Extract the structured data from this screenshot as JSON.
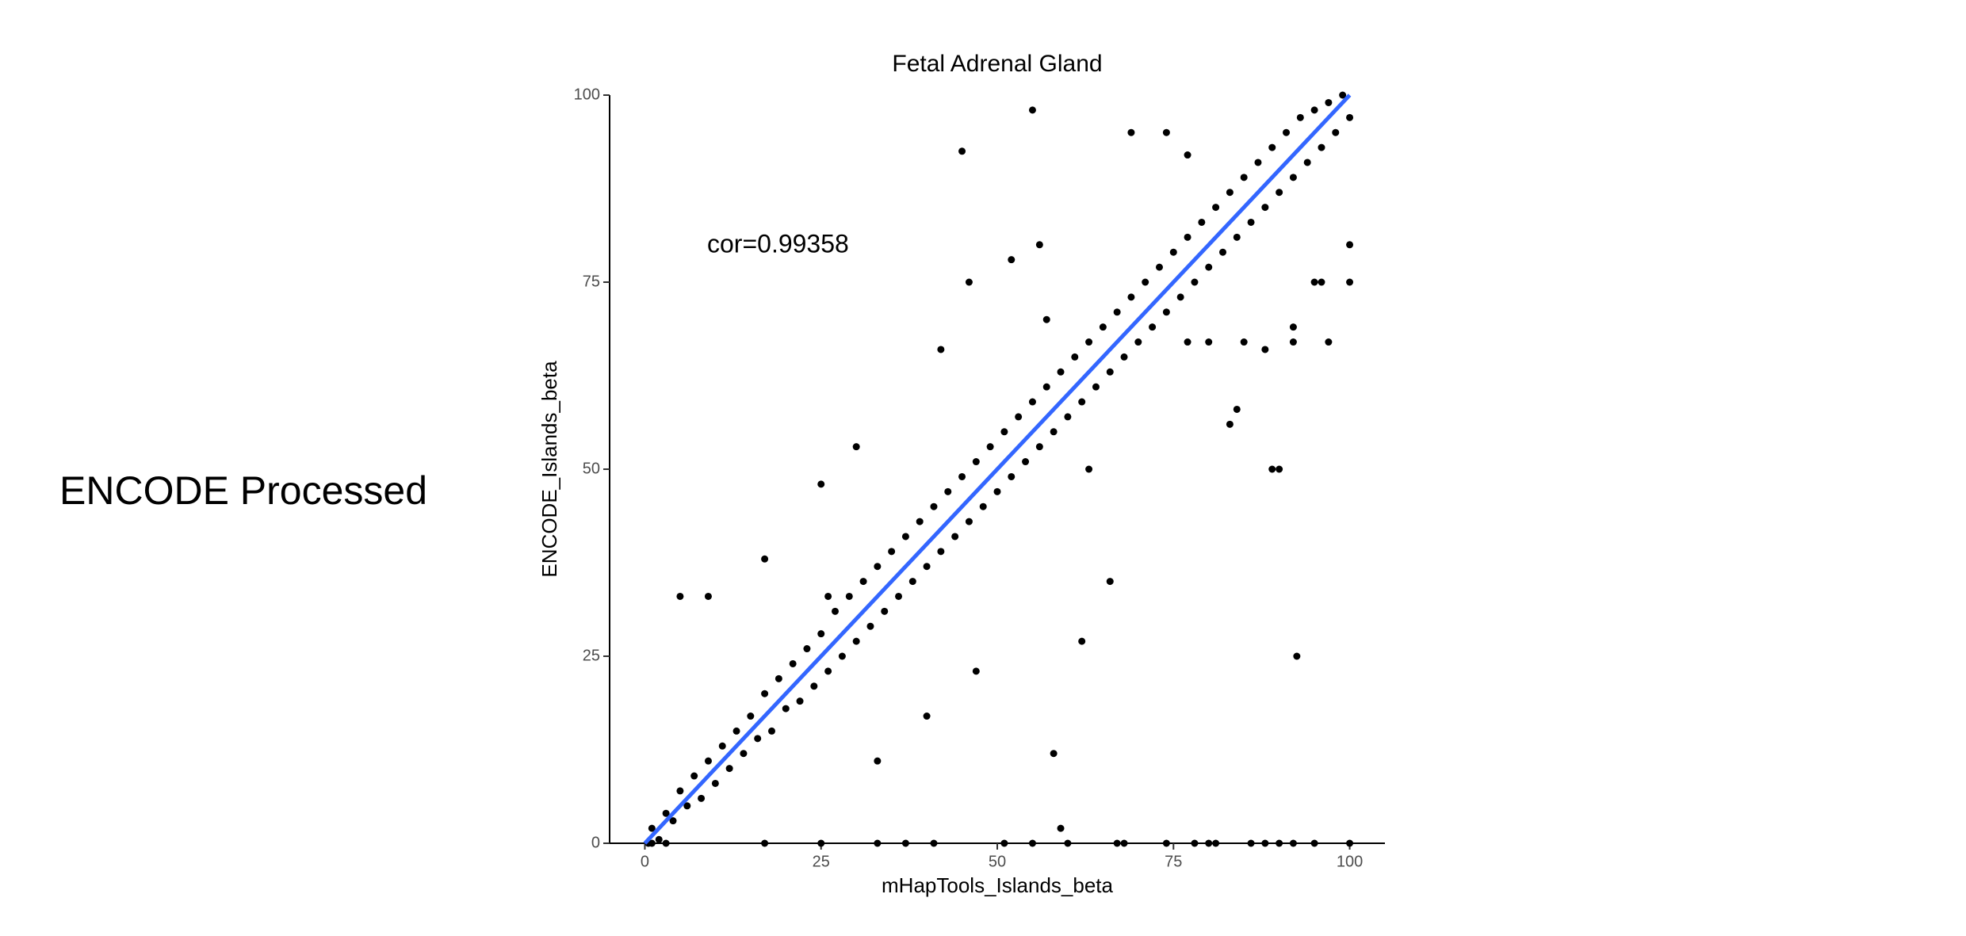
{
  "side_label": "ENCODE Processed",
  "chart_data": {
    "type": "scatter",
    "title": "Fetal Adrenal Gland",
    "xlabel": "mHapTools_Islands_beta",
    "ylabel": "ENCODE_Islands_beta",
    "annotation": "cor=0.99358",
    "xlim": [
      -5,
      105
    ],
    "ylim": [
      0,
      100
    ],
    "xticks": [
      0,
      25,
      50,
      75,
      100
    ],
    "yticks": [
      0,
      25,
      50,
      75,
      100
    ],
    "series": [
      {
        "kind": "points",
        "color": "#000000",
        "x": [
          1,
          2,
          3,
          4,
          5,
          6,
          7,
          8,
          9,
          10,
          11,
          12,
          13,
          14,
          15,
          16,
          17,
          18,
          19,
          20,
          21,
          22,
          23,
          24,
          25,
          26,
          27,
          28,
          29,
          30,
          31,
          32,
          33,
          34,
          35,
          36,
          37,
          38,
          39,
          40,
          41,
          42,
          43,
          44,
          45,
          46,
          47,
          48,
          49,
          50,
          51,
          52,
          53,
          54,
          55,
          56,
          57,
          58,
          59,
          60,
          61,
          62,
          63,
          64,
          65,
          66,
          67,
          68,
          69,
          70,
          71,
          72,
          73,
          74,
          75,
          76,
          77,
          78,
          79,
          80,
          81,
          82,
          83,
          84,
          85,
          86,
          87,
          88,
          89,
          90,
          91,
          92,
          93,
          94,
          95,
          96,
          97,
          98,
          99,
          100,
          55,
          45,
          5,
          9,
          17,
          30,
          25,
          42,
          46,
          58,
          59,
          62,
          66,
          92.5,
          83,
          84,
          89,
          90,
          100,
          100,
          95,
          96,
          92,
          92,
          97,
          88,
          80,
          77,
          85,
          47,
          40,
          33,
          63,
          57,
          56,
          69,
          74,
          77,
          52,
          26,
          0.5,
          1,
          3,
          17,
          25,
          33,
          37,
          41,
          51,
          55,
          60,
          67,
          68,
          74,
          78,
          80,
          81,
          86,
          88,
          90,
          92,
          95,
          100
        ],
        "y": [
          2,
          0.5,
          4,
          3,
          7,
          5,
          9,
          6,
          11,
          8,
          13,
          10,
          15,
          12,
          17,
          14,
          20,
          15,
          22,
          18,
          24,
          19,
          26,
          21,
          28,
          23,
          31,
          25,
          33,
          27,
          35,
          29,
          37,
          31,
          39,
          33,
          41,
          35,
          43,
          37,
          45,
          39,
          47,
          41,
          49,
          43,
          51,
          45,
          53,
          47,
          55,
          49,
          57,
          51,
          59,
          53,
          61,
          55,
          63,
          57,
          65,
          59,
          67,
          61,
          69,
          63,
          71,
          65,
          73,
          67,
          75,
          69,
          77,
          71,
          79,
          73,
          81,
          75,
          83,
          77,
          85,
          79,
          87,
          81,
          89,
          83,
          91,
          85,
          93,
          87,
          95,
          89,
          97,
          91,
          98,
          93,
          99,
          95,
          100,
          97,
          98,
          92.5,
          33,
          33,
          38,
          53,
          48,
          66,
          75,
          12,
          2,
          27,
          35,
          25,
          56,
          58,
          50,
          50,
          80,
          75,
          75,
          75,
          67,
          69,
          67,
          66,
          67,
          67,
          67,
          23,
          17,
          11,
          50,
          70,
          80,
          95,
          95,
          92,
          78,
          33,
          0,
          0,
          0,
          0,
          0,
          0,
          0,
          0,
          0,
          0,
          0,
          0,
          0,
          0,
          0,
          0,
          0,
          0,
          0,
          0,
          0,
          0,
          0
        ]
      },
      {
        "kind": "line",
        "color": "#3366ff",
        "x": [
          0,
          100
        ],
        "y": [
          0,
          100
        ]
      }
    ]
  }
}
